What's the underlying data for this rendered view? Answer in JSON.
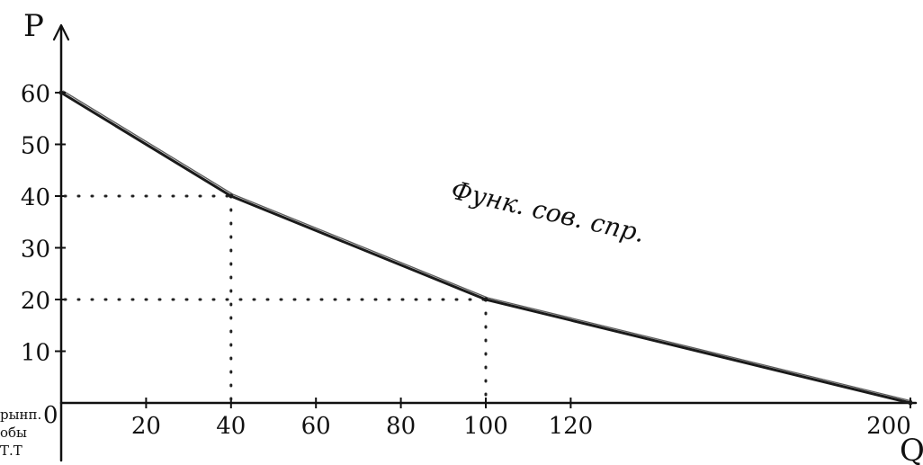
{
  "chart_data": {
    "type": "line",
    "title": "",
    "xlabel": "Q",
    "ylabel": "P",
    "xlim": [
      0,
      200
    ],
    "ylim": [
      0,
      65
    ],
    "x_ticks": [
      20,
      40,
      60,
      80,
      100,
      120,
      200
    ],
    "y_ticks": [
      10,
      20,
      30,
      40,
      50,
      60
    ],
    "x_tick_labels": [
      "20",
      "40",
      "60",
      "80",
      "100",
      "120",
      "200"
    ],
    "y_tick_labels": [
      "10",
      "20",
      "30",
      "40",
      "50",
      "60"
    ],
    "origin_label": "0",
    "series": [
      {
        "x": [
          0,
          40,
          100,
          200
        ],
        "y": [
          60,
          40,
          20,
          0
        ]
      }
    ],
    "guides": [
      {
        "x": 40,
        "y": 40
      },
      {
        "x": 100,
        "y": 20
      }
    ],
    "annotation": "Функ. сов. спр.",
    "edge_note": [
      "рынп.",
      "обы",
      "Т.Т"
    ],
    "grid": false,
    "legend": "none",
    "line_color": "#1a1a1a",
    "guide_color": "#222222"
  }
}
